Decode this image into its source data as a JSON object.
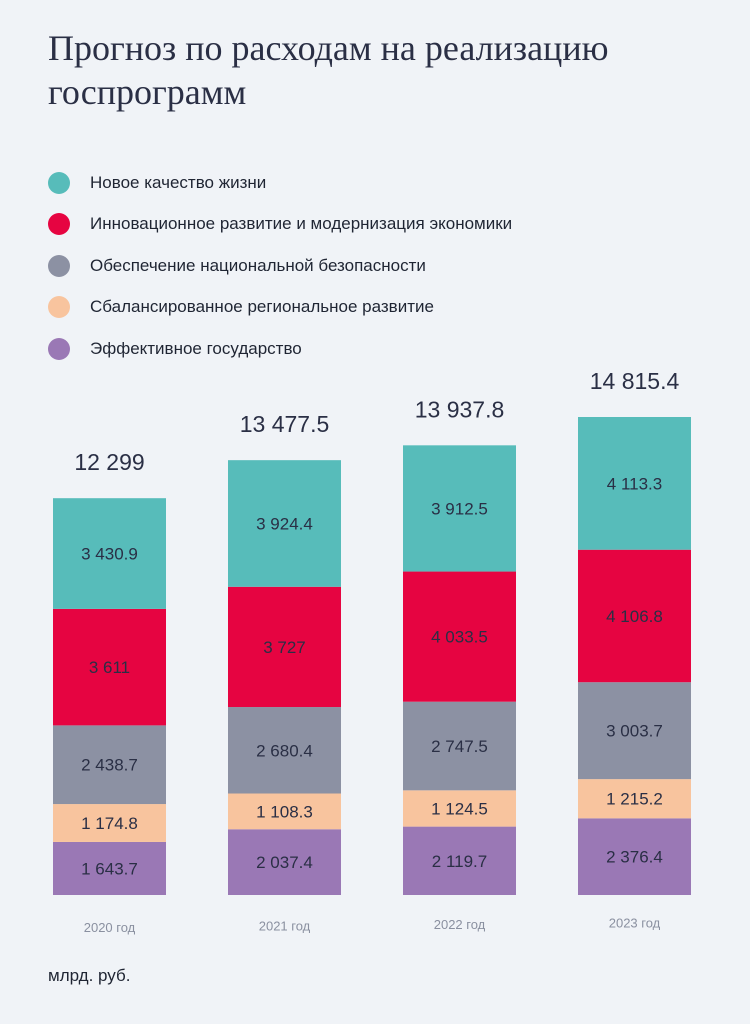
{
  "title": "Прогноз по расходам на реализацию госпрограмм",
  "unit_label": "млрд. руб.",
  "chart_data": {
    "type": "bar",
    "stacked": true,
    "title": "Прогноз по расходам на реализацию госпрограмм",
    "ylabel": "млрд. руб.",
    "categories": [
      "2020 год",
      "2021 год",
      "2022 год",
      "2023 год"
    ],
    "totals": [
      "12 299",
      "13 477.5",
      "13 937.8",
      "14 815.4"
    ],
    "legend_position": "top-left",
    "grid": false,
    "series": [
      {
        "name": "Новое качество жизни",
        "color": "#57bcba",
        "values": [
          3430.9,
          3924.4,
          3912.5,
          4113.3
        ],
        "labels": [
          "3 430.9",
          "3 924.4",
          "3 912.5",
          "4 113.3"
        ]
      },
      {
        "name": "Инновационное развитие и модернизация экономики",
        "color": "#e60441",
        "values": [
          3611,
          3727,
          4033.5,
          4106.8
        ],
        "labels": [
          "3 611",
          "3 727",
          "4 033.5",
          "4 106.8"
        ]
      },
      {
        "name": "Обеспечение национальной безопасности",
        "color": "#8c91a3",
        "values": [
          2438.7,
          2680.4,
          2747.5,
          3003.7
        ],
        "labels": [
          "2 438.7",
          "2 680.4",
          "2 747.5",
          "3 003.7"
        ]
      },
      {
        "name": "Сбалансированное региональное развитие",
        "color": "#f8c49e",
        "values": [
          1174.8,
          1108.3,
          1124.5,
          1215.2
        ],
        "labels": [
          "1 174.8",
          "1 108.3",
          "1 124.5",
          "1 215.2"
        ]
      },
      {
        "name": "Эффективное государство",
        "color": "#9a78b5",
        "values": [
          1643.7,
          2037.4,
          2119.7,
          2376.4
        ],
        "labels": [
          "1 643.7",
          "2 037.4",
          "2 119.7",
          "2 376.4"
        ]
      }
    ]
  }
}
